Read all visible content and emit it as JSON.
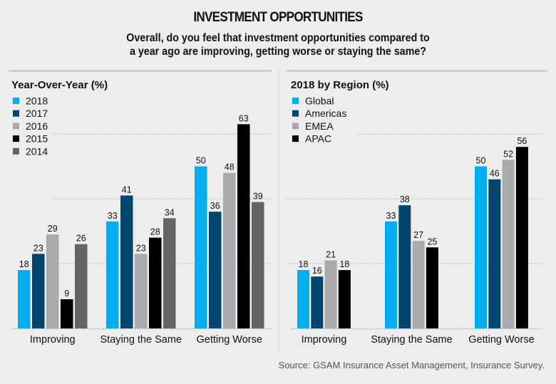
{
  "header": {
    "title": "INVESTMENT OPPORTUNITIES",
    "subtitle_line1": "Overall, do you feel that investment opportunities compared to",
    "subtitle_line2": "a year ago are improving, getting worse or staying the same?"
  },
  "footer": {
    "source": "Source: GSAM Insurance Asset Management, Insurance Survey."
  },
  "chart_data": [
    {
      "type": "bar",
      "title": "Year-Over-Year (%)",
      "categories": [
        "Improving",
        "Staying the Same",
        "Getting Worse"
      ],
      "series": [
        {
          "name": "2018",
          "color": "#00aeef",
          "values": [
            18,
            33,
            50
          ]
        },
        {
          "name": "2017",
          "color": "#00466e",
          "values": [
            23,
            41,
            36
          ]
        },
        {
          "name": "2016",
          "color": "#a8aaad",
          "values": [
            29,
            23,
            48
          ]
        },
        {
          "name": "2015",
          "color": "#000000",
          "values": [
            9,
            28,
            63
          ]
        },
        {
          "name": "2014",
          "color": "#636466",
          "values": [
            26,
            34,
            39
          ]
        }
      ],
      "ylim": [
        0,
        63
      ],
      "gridlines": [
        20,
        40,
        60
      ],
      "grid": true,
      "legend": "top-left",
      "xlabel": "",
      "ylabel": ""
    },
    {
      "type": "bar",
      "title": "2018 by Region (%)",
      "categories": [
        "Improving",
        "Staying the Same",
        "Getting Worse"
      ],
      "series": [
        {
          "name": "Global",
          "color": "#00aeef",
          "values": [
            18,
            33,
            50
          ]
        },
        {
          "name": "Americas",
          "color": "#00466e",
          "values": [
            16,
            38,
            46
          ]
        },
        {
          "name": "EMEA",
          "color": "#a8aaad",
          "values": [
            21,
            27,
            52
          ]
        },
        {
          "name": "APAC",
          "color": "#000000",
          "values": [
            18,
            25,
            56
          ]
        }
      ],
      "ylim": [
        0,
        63
      ],
      "gridlines": [
        20,
        40,
        60
      ],
      "grid": true,
      "legend": "top-left",
      "xlabel": "",
      "ylabel": ""
    }
  ]
}
